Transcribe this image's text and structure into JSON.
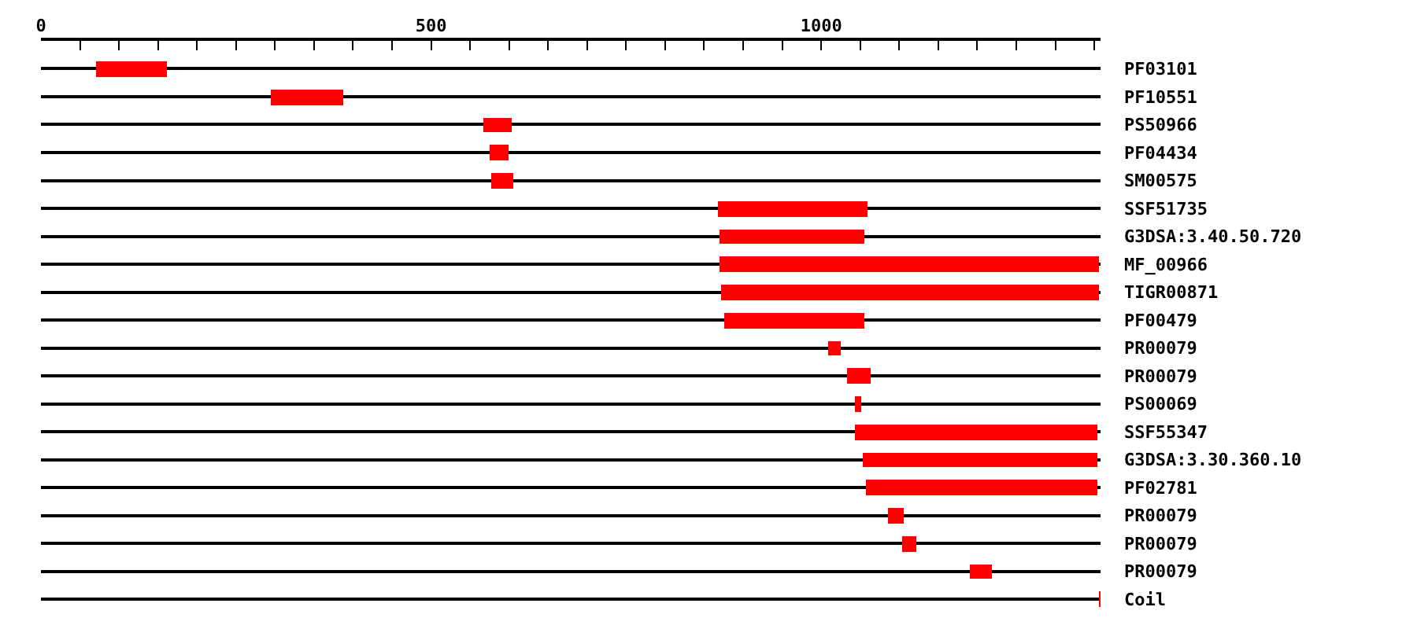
{
  "chart_data": {
    "type": "bar",
    "orientation": "horizontal",
    "categories": [
      "PF03101",
      "PF10551",
      "PS50966",
      "PF04434",
      "SM00575",
      "SSF51735",
      "G3DSA:3.40.50.720",
      "MF_00966",
      "TIGR00871",
      "PF00479",
      "PR00079",
      "PR00079",
      "PS00069",
      "SSF55347",
      "G3DSA:3.30.360.10",
      "PF02781",
      "PR00079",
      "PR00079",
      "PR00079",
      "Coil"
    ],
    "base": [
      70,
      294,
      567,
      575,
      577,
      867,
      869,
      869,
      871,
      875,
      1009,
      1033,
      1043,
      1043,
      1053,
      1057,
      1085,
      1104,
      1190,
      1356
    ],
    "values": [
      92,
      94,
      37,
      25,
      29,
      192,
      186,
      487,
      485,
      180,
      16,
      30,
      8,
      311,
      301,
      297,
      20,
      18,
      29,
      2
    ],
    "color": "#ff0000",
    "xlim": [
      0,
      1358
    ],
    "xticks": [
      0,
      {
        "value": 50,
        "label": null
      },
      {
        "value": 100,
        "label": null
      },
      {
        "value": 150,
        "label": null
      },
      {
        "value": 200,
        "label": null
      },
      {
        "value": 250,
        "label": null
      },
      {
        "value": 300,
        "label": null
      },
      {
        "value": 350,
        "label": null
      },
      {
        "value": 400,
        "label": null
      },
      {
        "value": 450,
        "label": null
      },
      500,
      {
        "value": 550,
        "label": null
      },
      {
        "value": 600,
        "label": null
      },
      {
        "value": 650,
        "label": null
      },
      {
        "value": 700,
        "label": null
      },
      {
        "value": 750,
        "label": null
      },
      {
        "value": 800,
        "label": null
      },
      {
        "value": 850,
        "label": null
      },
      {
        "value": 900,
        "label": null
      },
      {
        "value": 950,
        "label": null
      },
      1000,
      {
        "value": 1050,
        "label": null
      },
      {
        "value": 1100,
        "label": null
      },
      {
        "value": 1150,
        "label": null
      },
      {
        "value": 1200,
        "label": null
      },
      {
        "value": 1250,
        "label": null
      },
      {
        "value": 1300,
        "label": null
      },
      {
        "value": 1350,
        "label": null
      }
    ],
    "grid": "y"
  }
}
